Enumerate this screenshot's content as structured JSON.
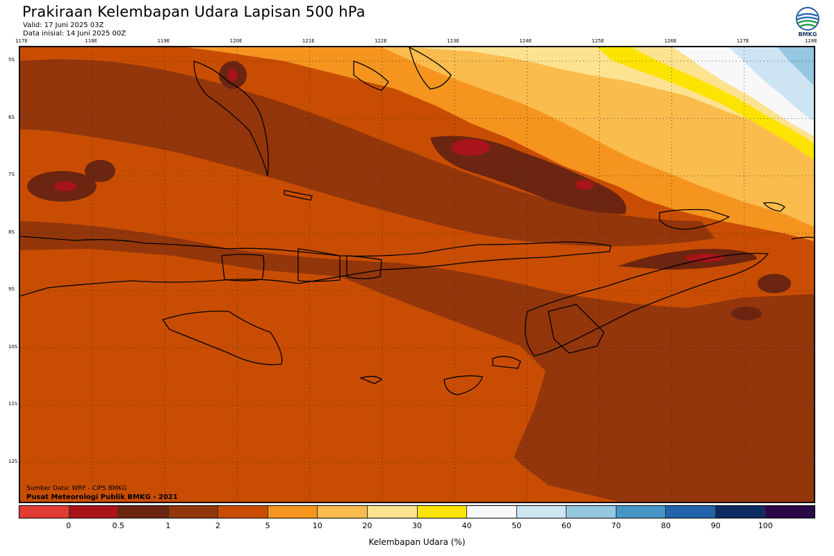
{
  "header": {
    "title": "Prakiraan Kelembapan Udara Lapisan 500 hPa",
    "valid": "Valid: 17 Juni 2025 03Z",
    "initial": "Data inisial: 14 Juni 2025 00Z"
  },
  "logo": {
    "text": "BMKG",
    "icon": "bmkg-logo-icon"
  },
  "axes": {
    "longitudes": [
      "117E",
      "118E",
      "119E",
      "120E",
      "121E",
      "122E",
      "123E",
      "124E",
      "125E",
      "126E",
      "127E",
      "128E"
    ],
    "latitudes": [
      "5S",
      "6S",
      "7S",
      "8S",
      "9S",
      "10S",
      "11S",
      "12S"
    ]
  },
  "source": {
    "line1": "Sumber Data: WRF - CIPS BMKG",
    "line2": "Pusat Meteorologi Publik BMKG - 2021"
  },
  "colorbar": {
    "colors": [
      "#e23b34",
      "#a81419",
      "#6b2510",
      "#93360b",
      "#c84d02",
      "#f5951f",
      "#fbbc4e",
      "#fde290",
      "#fde400",
      "#f8f8f8",
      "#cde5f2",
      "#95c7e1",
      "#4596c7",
      "#2263ab",
      "#0d2b63",
      "#2b0948"
    ],
    "ticks": [
      "0",
      "0.5",
      "1",
      "2",
      "5",
      "10",
      "20",
      "30",
      "40",
      "50",
      "60",
      "70",
      "80",
      "90",
      "100"
    ],
    "label": "Kelembapan Udara (%)"
  }
}
